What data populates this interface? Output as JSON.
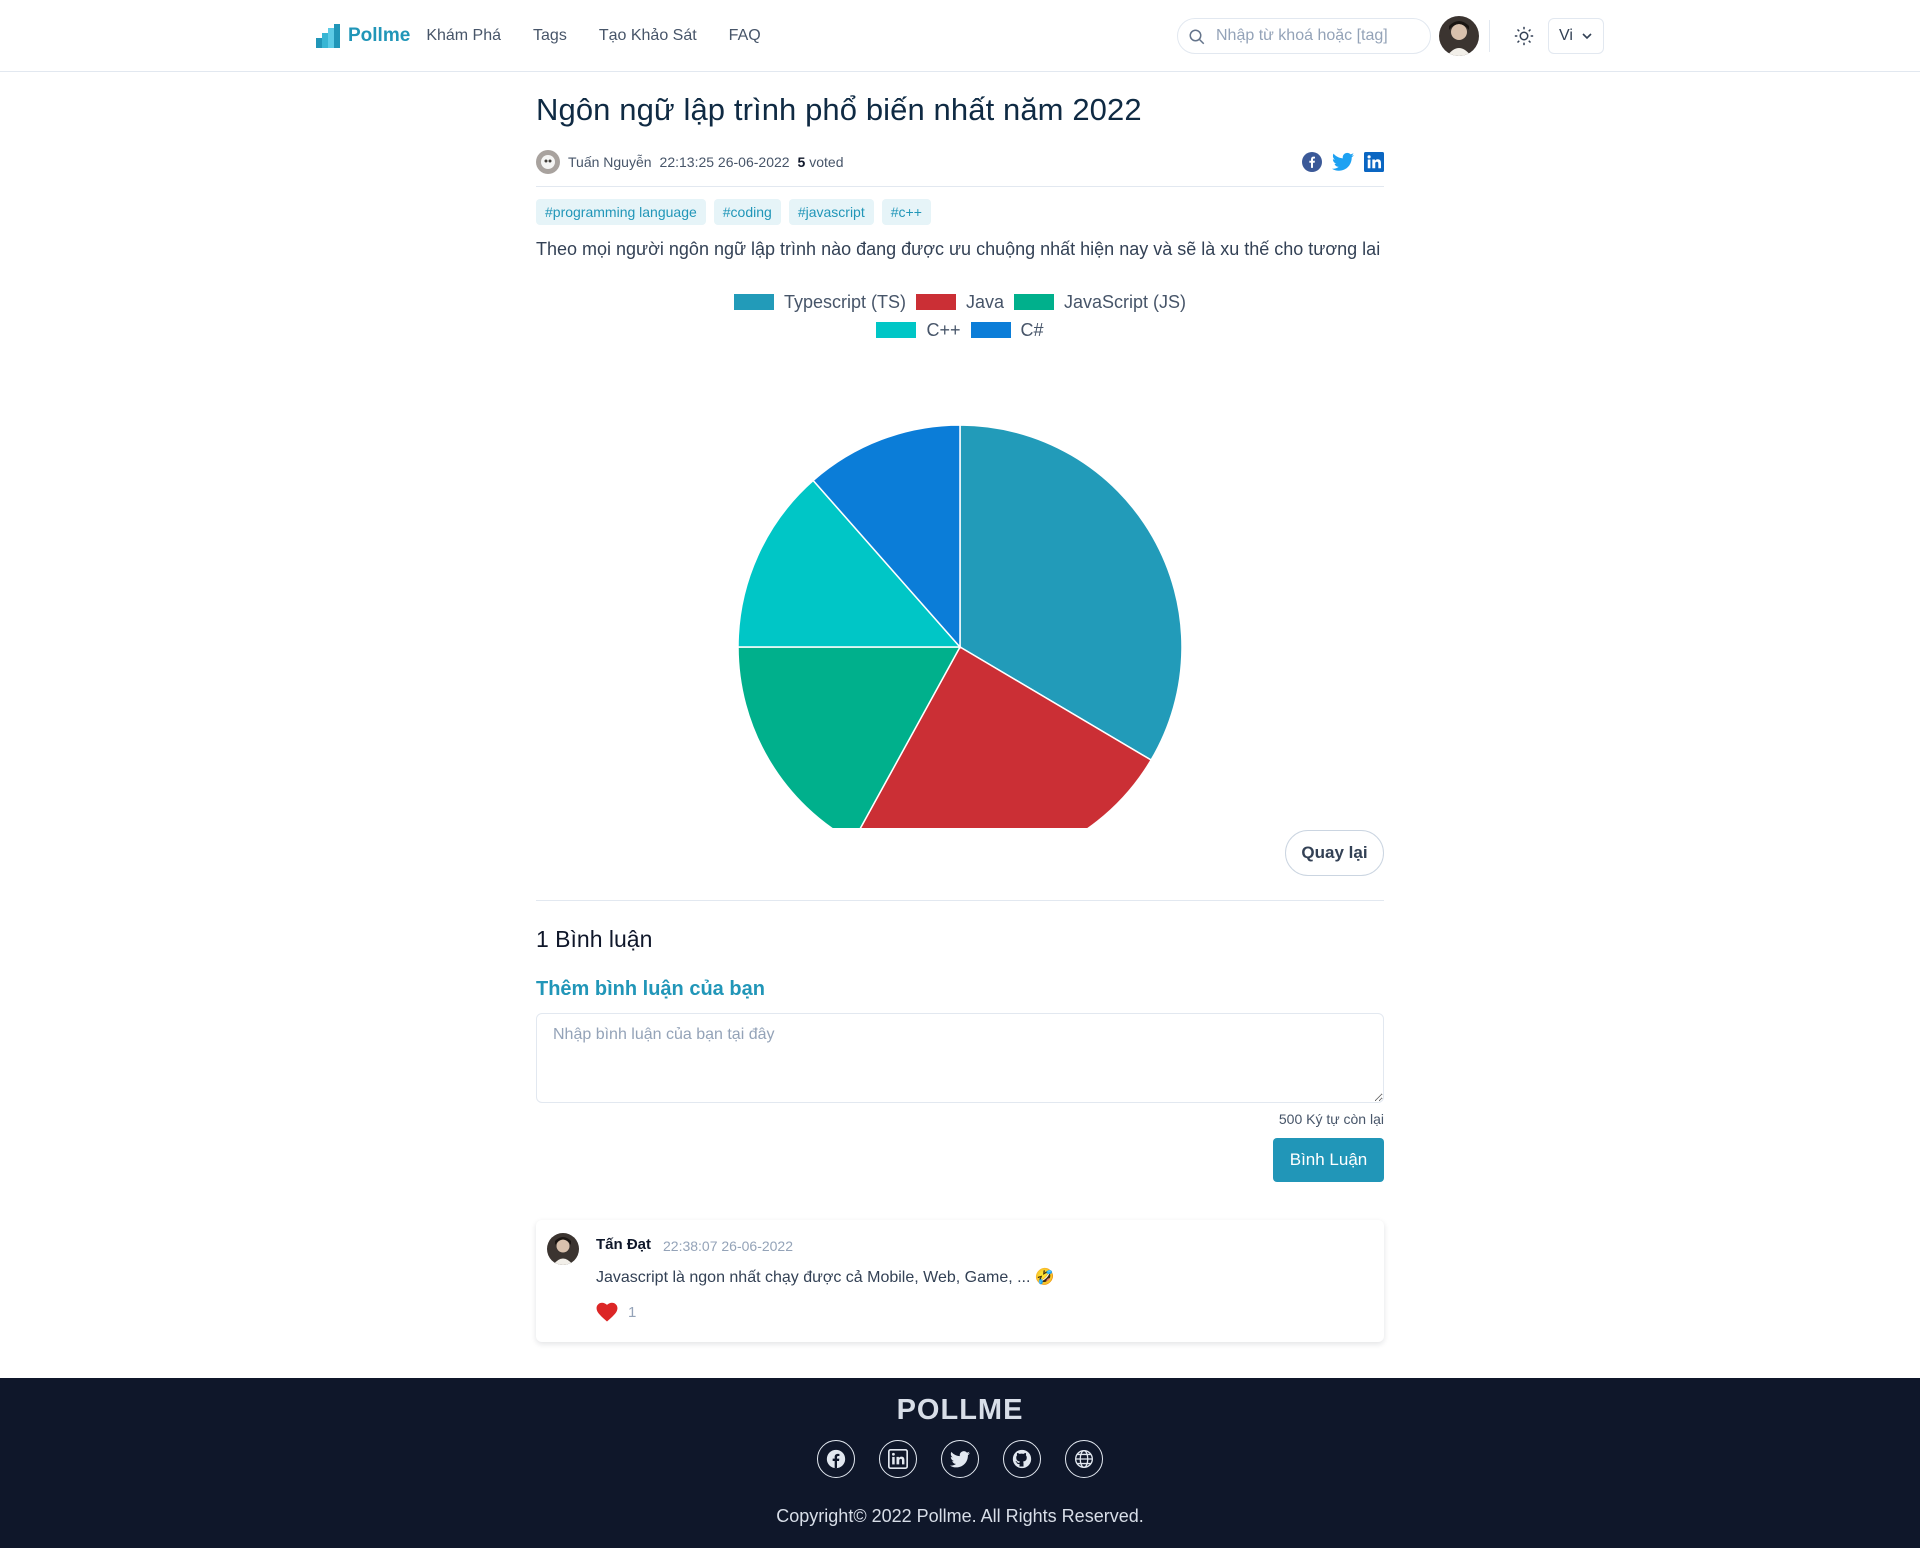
{
  "navbar": {
    "brand": "Pollme",
    "links": [
      "Khám Phá",
      "Tags",
      "Tạo Khảo Sát",
      "FAQ"
    ],
    "search_placeholder": "Nhập từ khoá hoặc [tag]",
    "language": "Vi",
    "icons": {
      "search": "search-icon",
      "theme": "sun-icon",
      "language": "chevron-down-icon"
    }
  },
  "poll": {
    "title": "Ngôn ngữ lập trình phổ biến nhất năm 2022",
    "author": "Tuấn Nguyễn",
    "time": "22:13:25 26-06-2022",
    "votes": "5",
    "votes_suffix": "voted",
    "tags": [
      "#programming language",
      "#coding",
      "#javascript",
      "#c++"
    ],
    "description": "Theo mọi người ngôn ngữ lập trình nào đang được ưu chuộng nhất hiện nay và sẽ là xu thế cho tương lai",
    "share_icons": [
      "facebook-icon",
      "twitter-icon",
      "linkedin-icon"
    ]
  },
  "chart_data": {
    "type": "pie",
    "title": "",
    "legend_placement": "top",
    "categories": [
      "Typescript (TS)",
      "Java",
      "JavaScript (JS)",
      "C++",
      "C#"
    ],
    "values": [
      33.5,
      24.5,
      17,
      13.5,
      11.5
    ],
    "colors": [
      "#229bb9",
      "#cb2f35",
      "#00b08c",
      "#00c6c6",
      "#0b7dd8"
    ]
  },
  "actions": {
    "back_label": "Quay lại"
  },
  "comments": {
    "count_title": "1 Bình luận",
    "add_title": "Thêm bình luận của bạn",
    "placeholder": "Nhập bình luận của bạn tại đây",
    "char_remaining": "500 Ký tự còn lại",
    "submit_label": "Bình Luận",
    "items": [
      {
        "author": "Tấn Đạt",
        "time": "22:38:07 26-06-2022",
        "text": "Javascript là ngon nhất chạy được cả Mobile, Web, Game, ... 🤣",
        "likes": "1"
      }
    ]
  },
  "footer": {
    "brand": "POLLME",
    "icons": [
      "facebook-icon",
      "linkedin-icon",
      "twitter-icon",
      "github-icon",
      "globe-icon"
    ],
    "copyright": "Copyright© 2022 Pollme. All Rights Reserved."
  },
  "colors": {
    "accent": "#2196b8",
    "footer_bg": "#0f172a",
    "heart": "#dc2626"
  }
}
